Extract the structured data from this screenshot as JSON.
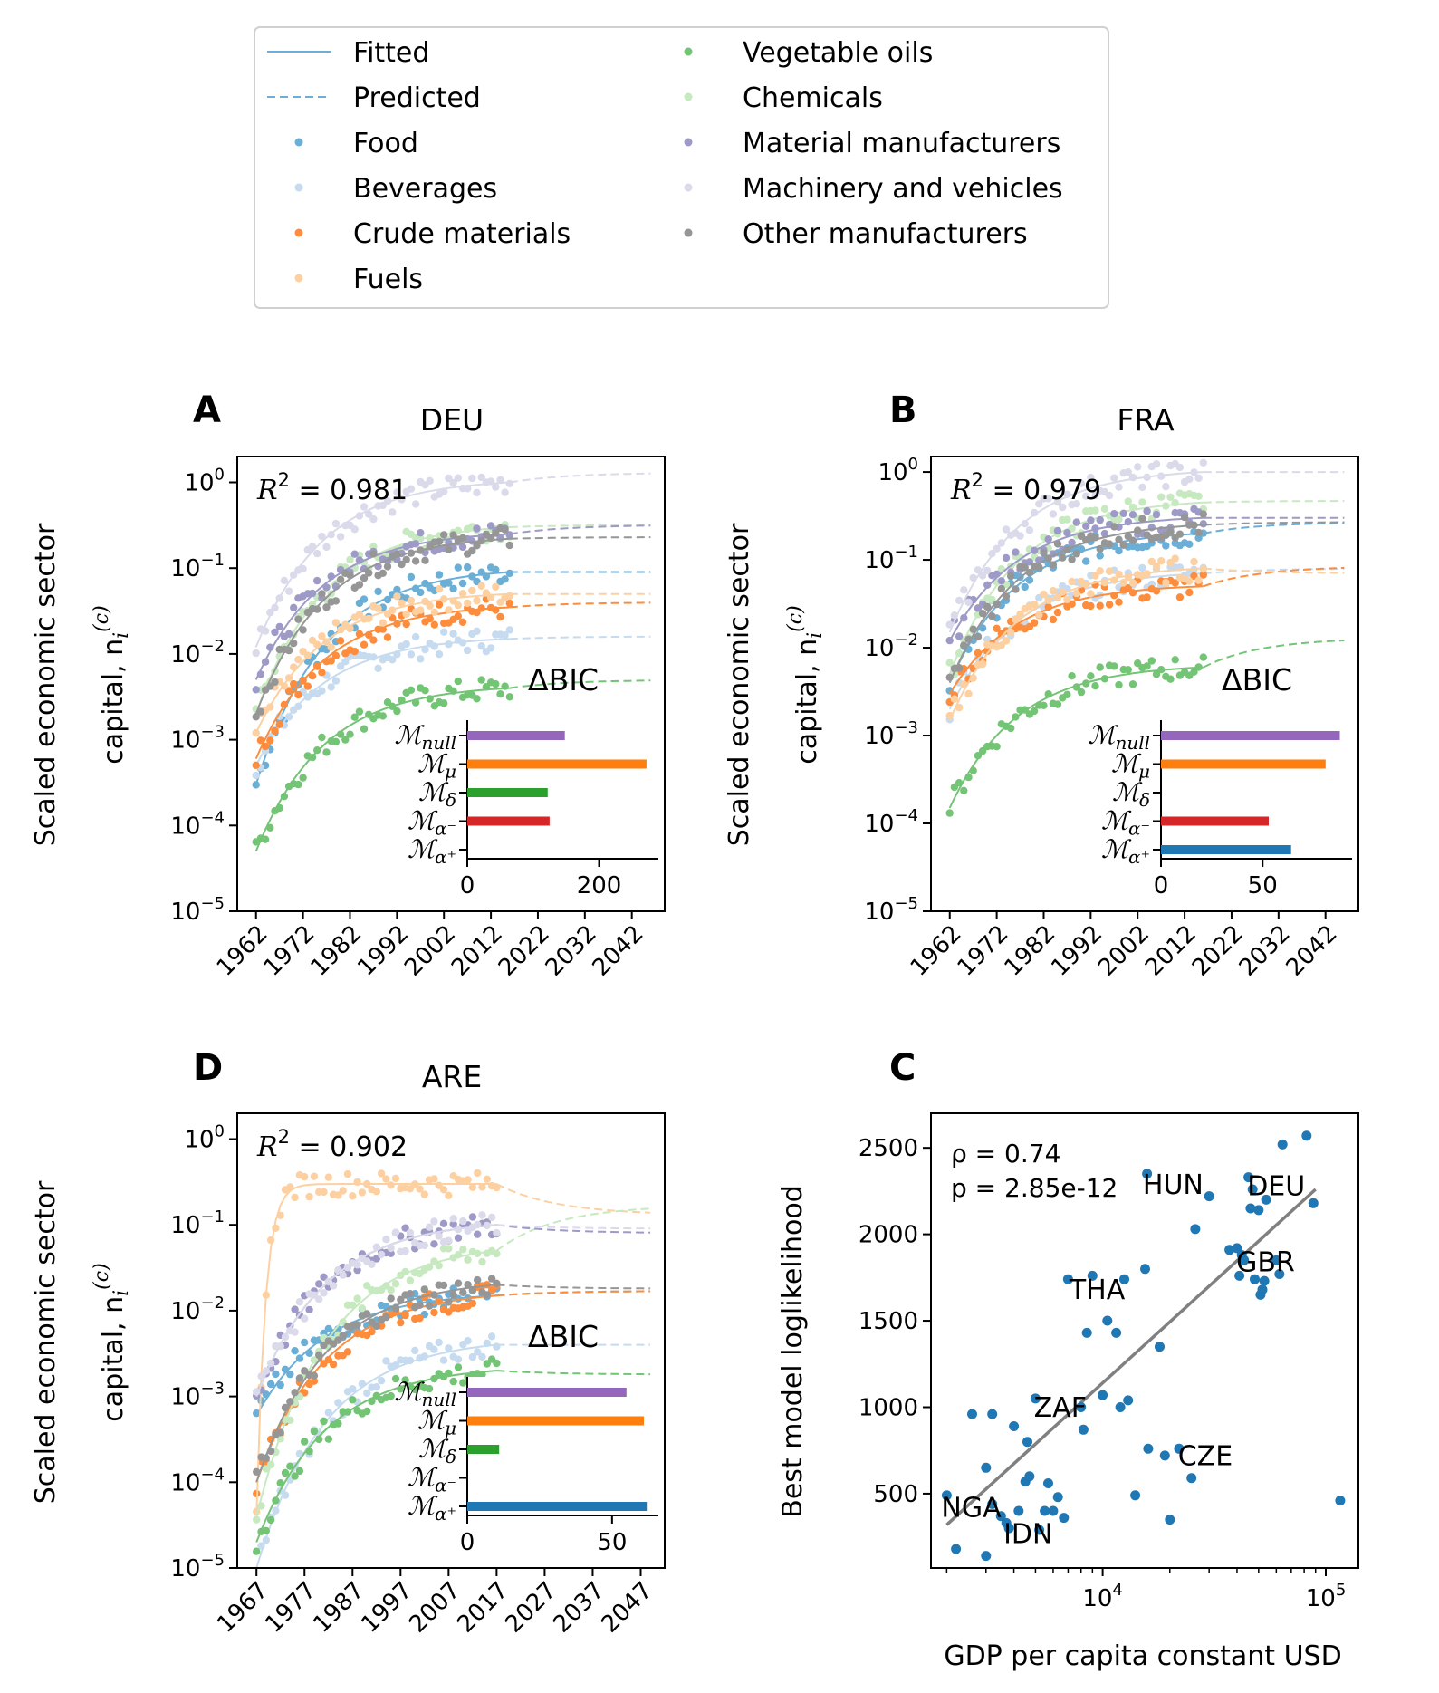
{
  "legend": {
    "fitted": "Fitted",
    "predicted": "Predicted",
    "sectors": [
      {
        "name": "Food",
        "color": "#6baed6"
      },
      {
        "name": "Beverages",
        "color": "#c6dbef"
      },
      {
        "name": "Crude materials",
        "color": "#fd8d3c"
      },
      {
        "name": "Fuels",
        "color": "#fdd0a2"
      },
      {
        "name": "Vegetable oils",
        "color": "#74c476"
      },
      {
        "name": "Chemicals",
        "color": "#c7e9c0"
      },
      {
        "name": "Material manufacturers",
        "color": "#9e9ac8"
      },
      {
        "name": "Machinery and vehicles",
        "color": "#dadaeb"
      },
      {
        "name": "Other manufacturers",
        "color": "#969696"
      }
    ]
  },
  "ylabel_line1": "Scaled economic sector",
  "ylabel_line2": "capital, n",
  "ylabel_sub": "i",
  "ylabel_sup": "(c)",
  "bic_title": "ΔBIC",
  "chart_data": [
    {
      "panel": "A",
      "type": "scatter",
      "title": "DEU",
      "r2": "0.981",
      "yscale": "log",
      "ylim": [
        1e-05,
        2
      ],
      "xlim": [
        1958,
        2049
      ],
      "xticks": [
        "1962",
        "1972",
        "1982",
        "1992",
        "2002",
        "2012",
        "2022",
        "2032",
        "2042"
      ],
      "first_year": 1962,
      "yticks": [
        1e-05,
        0.0001,
        0.001,
        0.01,
        0.1,
        1
      ],
      "series_start": [
        0.0003,
        0.0005,
        0.0006,
        0.0012,
        5e-05,
        0.002,
        0.005,
        0.012,
        0.002
      ],
      "series_end": [
        0.09,
        0.015,
        0.035,
        0.05,
        0.004,
        0.3,
        0.25,
        1.0,
        0.22
      ],
      "series_plateau": [
        0.09,
        0.016,
        0.04,
        0.05,
        0.005,
        0.32,
        0.32,
        1.3,
        0.23
      ],
      "data_end_year": 2016,
      "bic": {
        "models": [
          "null",
          "μ",
          "δ",
          "α⁻",
          "α⁺"
        ],
        "values": [
          148,
          272,
          122,
          125,
          0
        ],
        "xticks": [
          0,
          200
        ],
        "xlim": [
          0,
          290
        ]
      }
    },
    {
      "panel": "B",
      "type": "scatter",
      "title": "FRA",
      "r2": "0.979",
      "yscale": "log",
      "ylim": [
        1e-05,
        1.5
      ],
      "xlim": [
        1958,
        2049
      ],
      "xticks": [
        "1962",
        "1972",
        "1982",
        "1992",
        "2002",
        "2012",
        "2022",
        "2032",
        "2042"
      ],
      "first_year": 1962,
      "yticks": [
        1e-05,
        0.0001,
        0.001,
        0.01,
        0.1,
        1
      ],
      "series_start": [
        0.004,
        0.002,
        0.003,
        0.0015,
        0.00015,
        0.005,
        0.012,
        0.015,
        0.004
      ],
      "series_end": [
        0.2,
        0.07,
        0.05,
        0.08,
        0.006,
        0.45,
        0.3,
        1.0,
        0.25
      ],
      "series_plateau": [
        0.27,
        0.08,
        0.085,
        0.07,
        0.013,
        0.47,
        0.3,
        1.0,
        0.27
      ],
      "data_end_year": 2016,
      "bic": {
        "models": [
          "null",
          "μ",
          "δ",
          "α⁻",
          "α⁺"
        ],
        "values": [
          88,
          81,
          0,
          53,
          64
        ],
        "xticks": [
          0,
          50
        ],
        "xlim": [
          0,
          94
        ]
      }
    },
    {
      "panel": "D",
      "type": "scatter",
      "title": "ARE",
      "r2": "0.902",
      "yscale": "log",
      "ylim": [
        1e-05,
        2
      ],
      "xlim": [
        1963,
        2052
      ],
      "xticks": [
        "1967",
        "1977",
        "1987",
        "1997",
        "2007",
        "2017",
        "2027",
        "2037",
        "2047"
      ],
      "first_year": 1967,
      "yticks": [
        1e-05,
        0.0001,
        0.001,
        0.01,
        0.1,
        1
      ],
      "series_start": [
        0.0006,
        1e-05,
        0.0001,
        4e-05,
        2e-05,
        4e-05,
        0.001,
        0.001,
        0.0001
      ],
      "series_end": [
        0.015,
        0.004,
        0.015,
        0.3,
        0.002,
        0.05,
        0.1,
        0.1,
        0.02
      ],
      "series_plateau": [
        0.017,
        0.004,
        0.017,
        0.13,
        0.0018,
        0.17,
        0.08,
        0.09,
        0.018
      ],
      "data_end_year": 2017,
      "bic": {
        "models": [
          "null",
          "μ",
          "δ",
          "α⁻",
          "α⁺"
        ],
        "values": [
          55,
          61,
          11,
          0,
          62
        ],
        "xticks": [
          0,
          50
        ],
        "xlim": [
          0,
          66
        ]
      }
    },
    {
      "panel": "C",
      "type": "scatter",
      "xlabel": "GDP per capita constant USD",
      "ylabel": "Best model loglikelihood",
      "xscale": "log",
      "xlim": [
        1700,
        140000
      ],
      "ylim": [
        70,
        2700
      ],
      "yticks": [
        500,
        1000,
        1500,
        2000,
        2500
      ],
      "xticks": [
        {
          "value": 10000,
          "base": "10",
          "exp": "4"
        },
        {
          "value": 100000,
          "base": "10",
          "exp": "5"
        }
      ],
      "rho_text": "ρ =  0.74",
      "p_text": "p = 2.85e-12",
      "fit_line": [
        [
          2000,
          320
        ],
        [
          90000,
          2260
        ]
      ],
      "labels": [
        {
          "text": "HUN",
          "x": 16000,
          "y": 2350
        },
        {
          "text": "DEU",
          "x": 47000,
          "y": 2340
        },
        {
          "text": "GBR",
          "x": 42000,
          "y": 1900
        },
        {
          "text": "THA",
          "x": 7500,
          "y": 1740
        },
        {
          "text": "ZAF",
          "x": 5200,
          "y": 1060
        },
        {
          "text": "CZE",
          "x": 23000,
          "y": 780
        },
        {
          "text": "NGA",
          "x": 2000,
          "y": 480
        },
        {
          "text": "IDN",
          "x": 3800,
          "y": 330
        }
      ],
      "points": [
        [
          2000,
          490
        ],
        [
          2200,
          180
        ],
        [
          2600,
          960
        ],
        [
          3000,
          140
        ],
        [
          3000,
          650
        ],
        [
          3200,
          440
        ],
        [
          3200,
          960
        ],
        [
          3500,
          370
        ],
        [
          3700,
          330
        ],
        [
          3800,
          300
        ],
        [
          4000,
          890
        ],
        [
          4200,
          400
        ],
        [
          4500,
          570
        ],
        [
          4600,
          800
        ],
        [
          4700,
          600
        ],
        [
          5000,
          1050
        ],
        [
          5200,
          290
        ],
        [
          5500,
          400
        ],
        [
          5700,
          560
        ],
        [
          6000,
          400
        ],
        [
          6300,
          480
        ],
        [
          6700,
          360
        ],
        [
          7000,
          1740
        ],
        [
          8000,
          1000
        ],
        [
          8200,
          870
        ],
        [
          8500,
          1430
        ],
        [
          9000,
          1760
        ],
        [
          10000,
          1070
        ],
        [
          10500,
          1500
        ],
        [
          11500,
          1430
        ],
        [
          12000,
          1000
        ],
        [
          12500,
          1740
        ],
        [
          13000,
          1040
        ],
        [
          14000,
          490
        ],
        [
          15500,
          1800
        ],
        [
          15800,
          2350
        ],
        [
          16000,
          760
        ],
        [
          18000,
          1350
        ],
        [
          19000,
          720
        ],
        [
          20000,
          350
        ],
        [
          22000,
          760
        ],
        [
          25000,
          590
        ],
        [
          26000,
          2030
        ],
        [
          30000,
          2220
        ],
        [
          37000,
          1910
        ],
        [
          40000,
          1920
        ],
        [
          41000,
          1760
        ],
        [
          42000,
          1880
        ],
        [
          43000,
          1850
        ],
        [
          45000,
          2330
        ],
        [
          46000,
          2150
        ],
        [
          47000,
          2260
        ],
        [
          48000,
          1740
        ],
        [
          50000,
          2140
        ],
        [
          51000,
          1650
        ],
        [
          52000,
          1680
        ],
        [
          53000,
          1730
        ],
        [
          54000,
          2200
        ],
        [
          60000,
          1850
        ],
        [
          62000,
          1770
        ],
        [
          64000,
          2520
        ],
        [
          82000,
          2570
        ],
        [
          88000,
          2180
        ],
        [
          116000,
          460
        ]
      ]
    }
  ]
}
